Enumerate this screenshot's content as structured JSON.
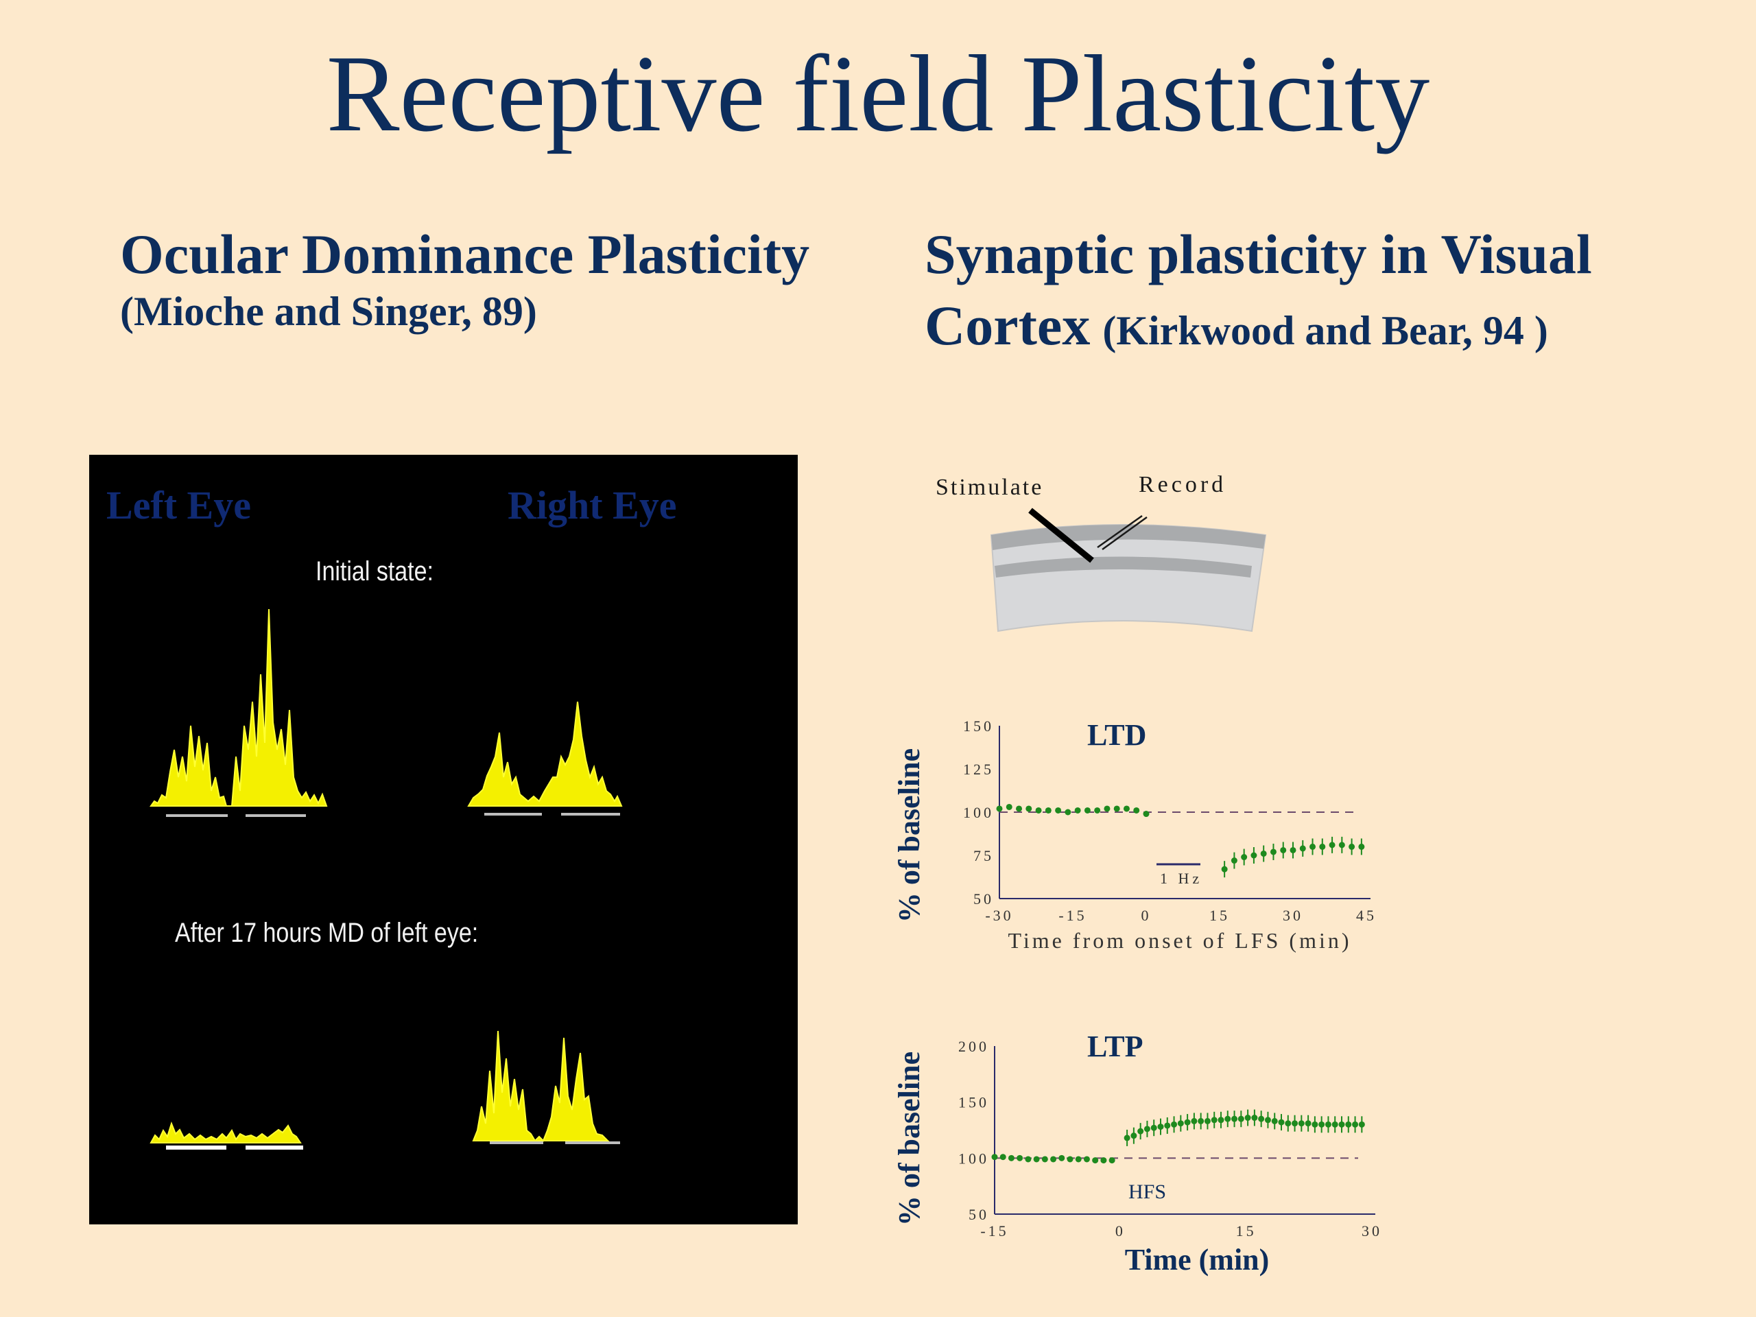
{
  "slide": {
    "title": "Receptive field Plasticity",
    "left_heading": "Ocular Dominance Plasticity",
    "left_citation": "(Mioche and Singer, 89)",
    "right_heading_line1": "Synaptic plasticity in Visual",
    "right_heading_line2": "Cortex",
    "right_citation": "(Kirkwood and Bear, 94 )"
  },
  "od_figure": {
    "left_eye_label": "Left Eye",
    "right_eye_label": "Right Eye",
    "initial_label": "Initial state:",
    "after_label": "After 17 hours MD of left eye:"
  },
  "diagram": {
    "stimulate_label": "Stimulate",
    "record_label": "Record"
  },
  "chart_data": [
    {
      "type": "scatter",
      "title": "LTD",
      "xlabel": "Time from onset of LFS (min)",
      "ylabel": "% of baseline",
      "xlim": [
        -30,
        45
      ],
      "ylim": [
        50,
        150
      ],
      "xticks": [
        "-30",
        "-15",
        "0",
        "15",
        "30",
        "45"
      ],
      "yticks": [
        "50",
        "75",
        "100",
        "125",
        "150"
      ],
      "baseline": 100,
      "stim_label": "1 Hz",
      "stim_interval": [
        0,
        15
      ],
      "x": [
        -30,
        -28,
        -26,
        -24,
        -22,
        -20,
        -18,
        -16,
        -14,
        -12,
        -10,
        -8,
        -6,
        -4,
        -2,
        0,
        16,
        18,
        20,
        22,
        24,
        26,
        28,
        30,
        32,
        34,
        36,
        38,
        40,
        42,
        44
      ],
      "values": [
        102,
        103,
        102,
        102,
        101,
        101,
        101,
        100,
        101,
        101,
        101,
        102,
        102,
        102,
        101,
        99,
        67,
        72,
        74,
        75,
        76,
        77,
        78,
        78,
        79,
        80,
        80,
        81,
        81,
        80,
        80
      ],
      "color": "#1e8a1e"
    },
    {
      "type": "scatter",
      "title": "LTP",
      "xlabel": "Time (min)",
      "ylabel": "% of baseline",
      "xlim": [
        -15,
        30
      ],
      "ylim": [
        50,
        200
      ],
      "xticks": [
        "-15",
        "0",
        "15",
        "30"
      ],
      "yticks": [
        "50",
        "100",
        "150",
        "200"
      ],
      "baseline": 100,
      "stim_label": "HFS",
      "x": [
        -15,
        -14,
        -13,
        -12,
        -11,
        -10,
        -9,
        -8,
        -7,
        -6,
        -5,
        -4,
        -3,
        -2,
        -1,
        0.8,
        1.6,
        2.4,
        3.2,
        4,
        4.8,
        5.6,
        6.4,
        7.2,
        8,
        8.8,
        9.6,
        10.4,
        11.2,
        12,
        12.8,
        13.6,
        14.4,
        15.2,
        16,
        16.8,
        17.6,
        18.4,
        19.2,
        20,
        20.8,
        21.6,
        22.4,
        23.2,
        24,
        24.8,
        25.6,
        26.4,
        27.2,
        28,
        28.8
      ],
      "values": [
        101,
        101,
        100,
        100,
        99,
        99,
        99,
        99,
        100,
        99,
        99,
        99,
        98,
        98,
        98,
        118,
        120,
        124,
        126,
        127,
        128,
        129,
        130,
        131,
        132,
        133,
        133,
        133,
        134,
        134,
        135,
        135,
        135,
        136,
        136,
        135,
        134,
        133,
        132,
        131,
        131,
        131,
        131,
        130,
        130,
        130,
        130,
        130,
        130,
        130,
        130
      ],
      "color": "#1e8a1e"
    }
  ]
}
